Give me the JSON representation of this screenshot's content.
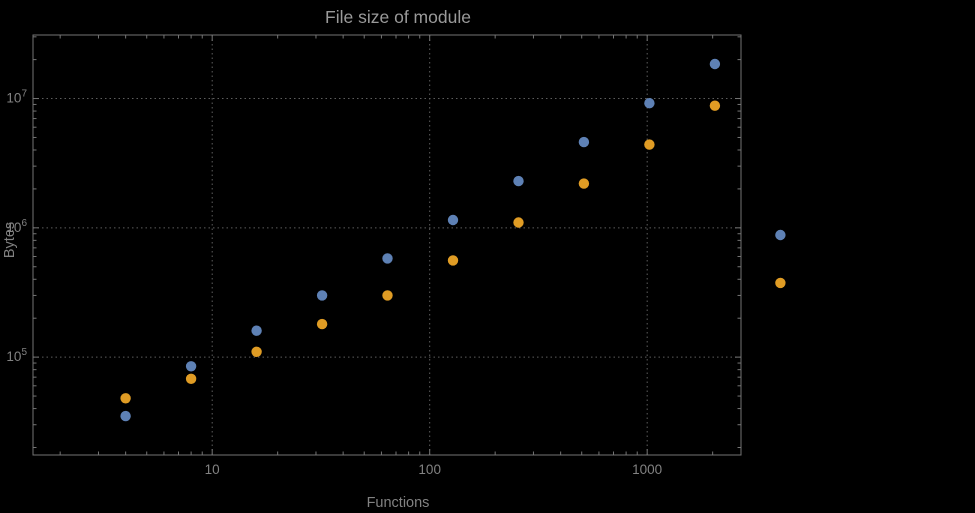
{
  "page": {
    "background": "#000000"
  },
  "chart_data": {
    "type": "scatter",
    "title": "File size of module",
    "xlabel": "Functions",
    "ylabel": "Bytes",
    "x_scale": "log10",
    "y_scale": "log10",
    "x_range": [
      1.5,
      2700
    ],
    "y_range": [
      17500,
      31000000
    ],
    "grid": "dotted-major",
    "legend": "none",
    "plot_range_clipping": false,
    "x_ticks": [
      {
        "value": 10,
        "label": "10"
      },
      {
        "value": 100,
        "label": "100"
      },
      {
        "value": 1000,
        "label": "1000"
      }
    ],
    "y_ticks": [
      {
        "value": 100000,
        "base": "10",
        "exp": "5"
      },
      {
        "value": 1000000,
        "base": "10",
        "exp": "6"
      },
      {
        "value": 10000000,
        "base": "10",
        "exp": "7"
      }
    ],
    "x": [
      4,
      8,
      16,
      32,
      64,
      128,
      256,
      512,
      1024,
      2048,
      4096
    ],
    "series": [
      {
        "name": "blue-series",
        "color": "#5e81b5",
        "values": [
          35000,
          85000,
          160000,
          300000,
          580000,
          1150000,
          2300000,
          4600000,
          9200000,
          18500000,
          880000
        ]
      },
      {
        "name": "orange-series",
        "color": "#e09c24",
        "values": [
          48000,
          68000,
          110000,
          180000,
          300000,
          560000,
          1100000,
          2200000,
          4400000,
          8800000,
          375000
        ]
      }
    ],
    "colors": {
      "frame": "#757575",
      "grid": "#5e5e5e",
      "title": "#9a9a9a",
      "axis_labels": "#828282",
      "tick_labels": "#828282",
      "background": "#000000"
    }
  }
}
